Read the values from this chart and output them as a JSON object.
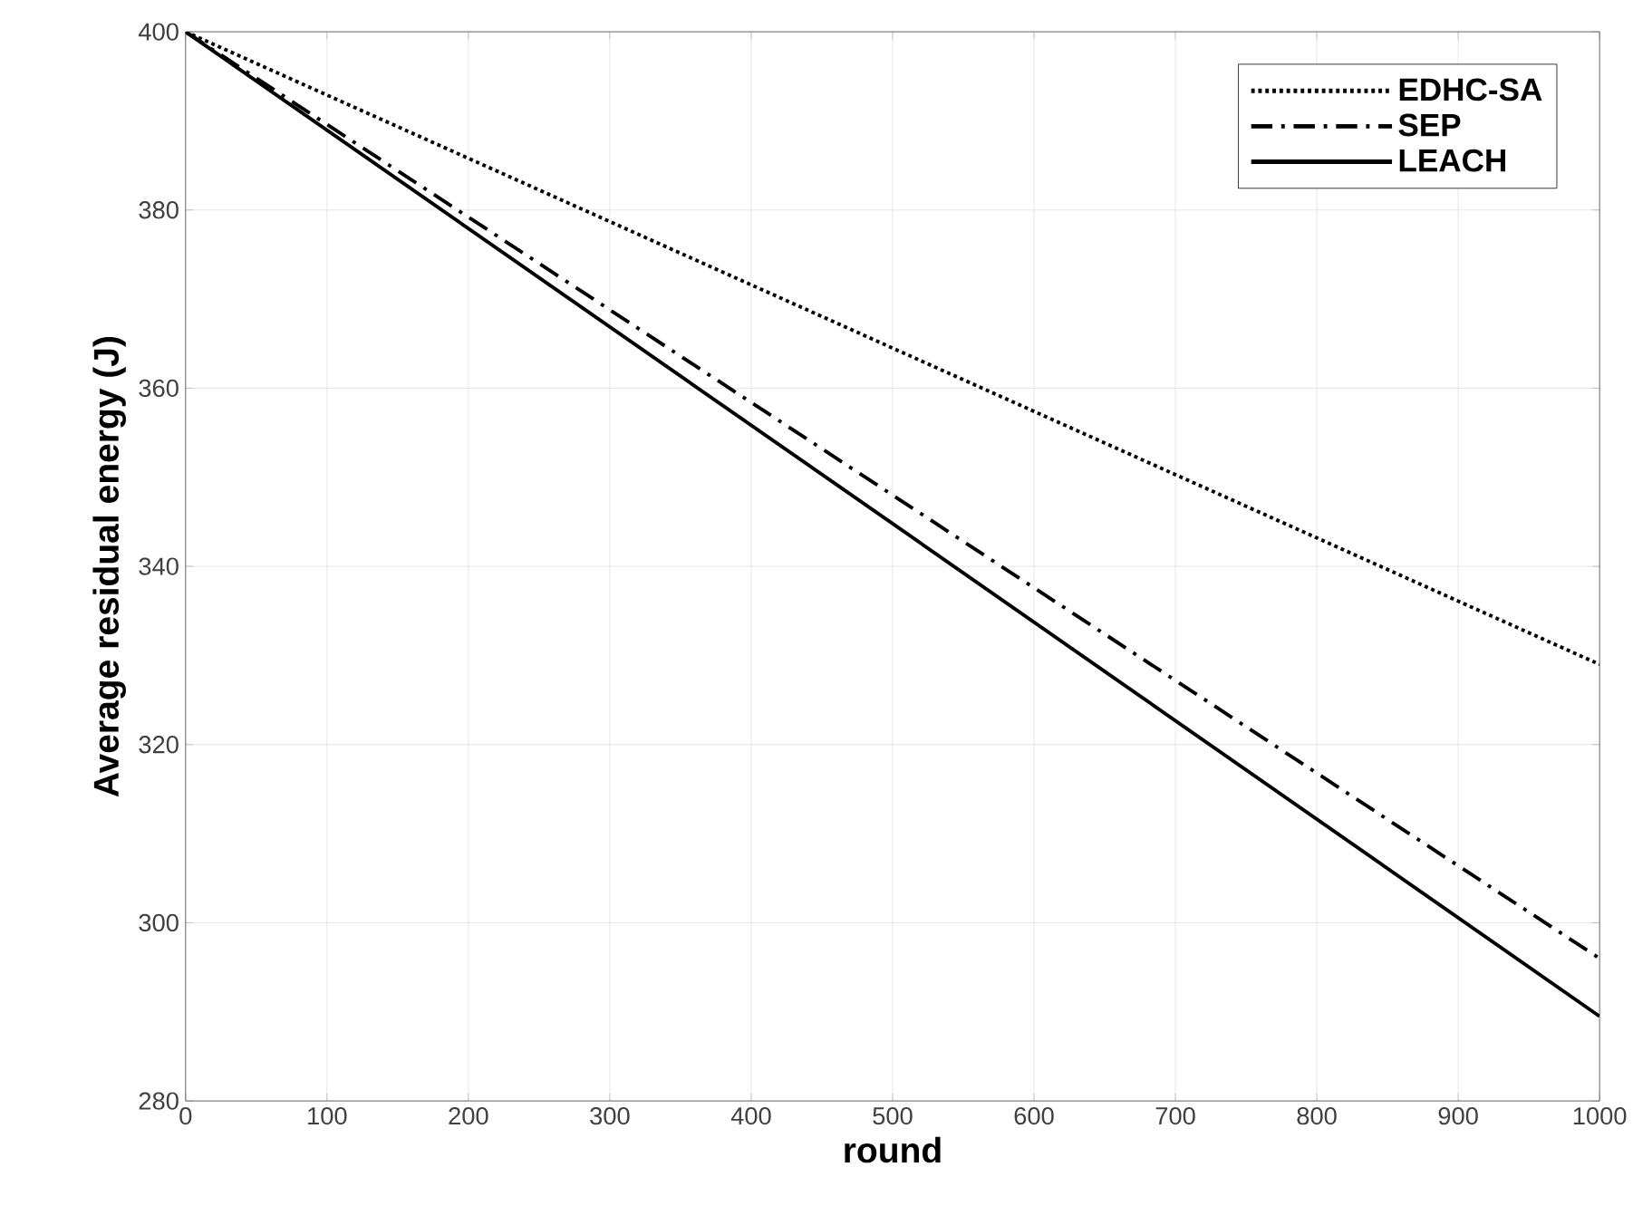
{
  "chart_data": {
    "type": "line",
    "xlabel": "round",
    "ylabel": "Average residual energy (J)",
    "x": [
      0,
      500,
      1000
    ],
    "series": [
      {
        "name": "EDHC-SA",
        "color": "#000000",
        "line_style": "dotted",
        "values": [
          400,
          364.5,
          329
        ]
      },
      {
        "name": "SEP",
        "color": "#000000",
        "line_style": "dashdot",
        "values": [
          400,
          348,
          296
        ]
      },
      {
        "name": "LEACH",
        "color": "#000000",
        "line_style": "solid",
        "values": [
          400,
          344.8,
          289.5
        ]
      }
    ],
    "xlim": [
      0,
      1000
    ],
    "ylim": [
      280,
      400
    ],
    "xticks": [
      0,
      100,
      200,
      300,
      400,
      500,
      600,
      700,
      800,
      900,
      1000
    ],
    "yticks": [
      280,
      300,
      320,
      340,
      360,
      380,
      400
    ],
    "grid": true,
    "legend": "top right",
    "marker": "none"
  }
}
